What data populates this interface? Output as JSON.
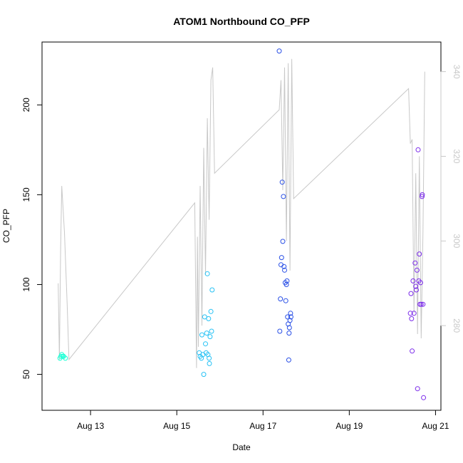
{
  "chart_data": {
    "type": "scatter",
    "title": "ATOM1 Northbound CO_PFP",
    "xlabel": "Date",
    "ylabel": "CO_PFP",
    "x_axis": {
      "type": "date",
      "range": [
        "2016-08-11T21:00",
        "2016-08-21T03:00"
      ],
      "ticks": [
        {
          "value": "2016-08-13",
          "label": "Aug 13"
        },
        {
          "value": "2016-08-15",
          "label": "Aug 15"
        },
        {
          "value": "2016-08-17",
          "label": "Aug 17"
        },
        {
          "value": "2016-08-19",
          "label": "Aug 19"
        },
        {
          "value": "2016-08-21",
          "label": "Aug 21"
        }
      ]
    },
    "y_left": {
      "range": [
        30,
        235
      ],
      "ticks": [
        50,
        100,
        150,
        200
      ]
    },
    "y_right": {
      "range": [
        260,
        347
      ],
      "ticks": [
        280,
        300,
        320,
        340
      ],
      "color": "#c8c8c8"
    },
    "series": [
      {
        "color": "#1affd5",
        "points": [
          [
            "2016-08-12T07:00",
            59
          ],
          [
            "2016-08-12T07:30",
            60
          ],
          [
            "2016-08-12T08:00",
            61
          ],
          [
            "2016-08-12T08:30",
            60
          ],
          [
            "2016-08-12T09:00",
            60
          ],
          [
            "2016-08-12T10:00",
            59
          ]
        ]
      },
      {
        "color": "#27c2f5",
        "points": [
          [
            "2016-08-15T12:30",
            62
          ],
          [
            "2016-08-15T13:00",
            60
          ],
          [
            "2016-08-15T13:40",
            59
          ],
          [
            "2016-08-15T14:00",
            72
          ],
          [
            "2016-08-15T14:30",
            61
          ],
          [
            "2016-08-15T15:00",
            50
          ],
          [
            "2016-08-15T15:30",
            82
          ],
          [
            "2016-08-15T16:00",
            67
          ],
          [
            "2016-08-15T16:20",
            62
          ],
          [
            "2016-08-15T16:40",
            73
          ],
          [
            "2016-08-15T17:00",
            106
          ],
          [
            "2016-08-15T17:20",
            61
          ],
          [
            "2016-08-15T17:40",
            81
          ],
          [
            "2016-08-15T18:00",
            59
          ],
          [
            "2016-08-15T18:10",
            56
          ],
          [
            "2016-08-15T18:30",
            71
          ],
          [
            "2016-08-15T19:00",
            85
          ],
          [
            "2016-08-15T19:20",
            74
          ],
          [
            "2016-08-15T19:40",
            97
          ]
        ]
      },
      {
        "color": "#2a50e6",
        "points": [
          [
            "2016-08-17T09:00",
            230
          ],
          [
            "2016-08-17T09:20",
            74
          ],
          [
            "2016-08-17T09:40",
            92
          ],
          [
            "2016-08-17T10:00",
            111
          ],
          [
            "2016-08-17T10:20",
            115
          ],
          [
            "2016-08-17T10:40",
            157
          ],
          [
            "2016-08-17T11:00",
            124
          ],
          [
            "2016-08-17T11:20",
            149
          ],
          [
            "2016-08-17T11:40",
            110
          ],
          [
            "2016-08-17T12:00",
            108
          ],
          [
            "2016-08-17T12:20",
            101
          ],
          [
            "2016-08-17T12:40",
            91
          ],
          [
            "2016-08-17T13:00",
            100
          ],
          [
            "2016-08-17T13:20",
            102
          ],
          [
            "2016-08-17T13:40",
            82
          ],
          [
            "2016-08-17T14:00",
            78
          ],
          [
            "2016-08-17T14:20",
            58
          ],
          [
            "2016-08-17T14:30",
            73
          ],
          [
            "2016-08-17T14:40",
            76
          ],
          [
            "2016-08-17T15:00",
            80
          ],
          [
            "2016-08-17T15:20",
            84
          ],
          [
            "2016-08-17T15:30",
            82
          ]
        ]
      },
      {
        "color": "#7b2bea",
        "points": [
          [
            "2016-08-20T10:00",
            84
          ],
          [
            "2016-08-20T10:20",
            95
          ],
          [
            "2016-08-20T10:40",
            81
          ],
          [
            "2016-08-20T11:00",
            63
          ],
          [
            "2016-08-20T11:30",
            102
          ],
          [
            "2016-08-20T12:00",
            84
          ],
          [
            "2016-08-20T12:40",
            112
          ],
          [
            "2016-08-20T13:00",
            99
          ],
          [
            "2016-08-20T13:20",
            97
          ],
          [
            "2016-08-20T13:40",
            108
          ],
          [
            "2016-08-20T14:00",
            42
          ],
          [
            "2016-08-20T14:20",
            175
          ],
          [
            "2016-08-20T14:40",
            102
          ],
          [
            "2016-08-20T15:00",
            117
          ],
          [
            "2016-08-20T15:20",
            89
          ],
          [
            "2016-08-20T15:40",
            101
          ],
          [
            "2016-08-20T16:00",
            89
          ],
          [
            "2016-08-20T16:30",
            149
          ],
          [
            "2016-08-20T16:40",
            150
          ],
          [
            "2016-08-20T17:00",
            89
          ],
          [
            "2016-08-20T17:20",
            37
          ]
        ]
      }
    ],
    "secondary_line": {
      "axis": "right",
      "color": "#c8c8c8",
      "points": [
        [
          "2016-08-12T06:00",
          290
        ],
        [
          "2016-08-12T06:40",
          272
        ],
        [
          "2016-08-12T07:20",
          298
        ],
        [
          "2016-08-12T08:00",
          313
        ],
        [
          "2016-08-12T09:30",
          302
        ],
        [
          "2016-08-12T11:00",
          285
        ],
        [
          "2016-08-12T12:00",
          272
        ],
        [
          "2016-08-15T10:00",
          309
        ],
        [
          "2016-08-15T11:00",
          270
        ],
        [
          "2016-08-15T11:30",
          301
        ],
        [
          "2016-08-15T12:00",
          275
        ],
        [
          "2016-08-15T13:00",
          313
        ],
        [
          "2016-08-15T14:00",
          280
        ],
        [
          "2016-08-15T15:00",
          322
        ],
        [
          "2016-08-15T16:00",
          292
        ],
        [
          "2016-08-15T17:00",
          329
        ],
        [
          "2016-08-15T18:00",
          305
        ],
        [
          "2016-08-15T19:00",
          338
        ],
        [
          "2016-08-15T20:00",
          341
        ],
        [
          "2016-08-15T21:00",
          316
        ],
        [
          "2016-08-17T09:00",
          331
        ],
        [
          "2016-08-17T10:00",
          338
        ],
        [
          "2016-08-17T11:00",
          312
        ],
        [
          "2016-08-17T12:00",
          341
        ],
        [
          "2016-08-17T13:00",
          300
        ],
        [
          "2016-08-17T14:00",
          342
        ],
        [
          "2016-08-17T15:00",
          293
        ],
        [
          "2016-08-17T16:00",
          343
        ],
        [
          "2016-08-17T17:00",
          310
        ],
        [
          "2016-08-20T09:00",
          336
        ],
        [
          "2016-08-20T10:00",
          323
        ],
        [
          "2016-08-20T11:00",
          324
        ],
        [
          "2016-08-20T12:00",
          283
        ],
        [
          "2016-08-20T13:00",
          316
        ],
        [
          "2016-08-20T14:00",
          278
        ],
        [
          "2016-08-20T15:00",
          320
        ],
        [
          "2016-08-20T16:00",
          277
        ],
        [
          "2016-08-20T17:00",
          302
        ],
        [
          "2016-08-20T18:00",
          340
        ]
      ]
    },
    "grid": false,
    "legend": "none"
  }
}
